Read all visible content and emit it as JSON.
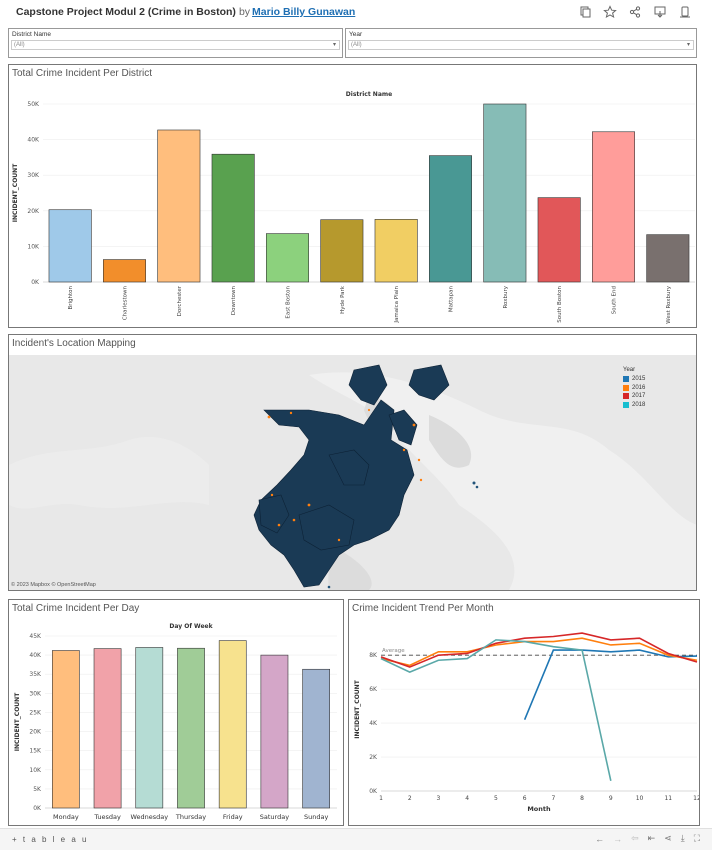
{
  "header": {
    "title": "Capstone Project Modul 2 (Crime in Boston)",
    "by": "by",
    "author": "Mario Billy Gunawan",
    "icons": [
      "copy-icon",
      "star-icon",
      "share-icon",
      "download-icon",
      "device-icon"
    ]
  },
  "filters": {
    "district": {
      "label": "District Name",
      "value": "(All)"
    },
    "year": {
      "label": "Year",
      "value": "(All)"
    }
  },
  "district_panel": {
    "title": "Total Crime Incident Per District"
  },
  "map_panel": {
    "title": "Incident's Location Mapping",
    "legend_title": "Year",
    "legend": [
      {
        "label": "2015",
        "color": "#1f77b4"
      },
      {
        "label": "2016",
        "color": "#ff7f0e"
      },
      {
        "label": "2017",
        "color": "#d62728"
      },
      {
        "label": "2018",
        "color": "#17becf"
      }
    ],
    "attribution": "© 2023 Mapbox © OpenStreetMap"
  },
  "day_panel": {
    "title": "Total Crime Incident Per Day"
  },
  "month_panel": {
    "title": "Crime Incident Trend Per Month"
  },
  "footer": {
    "logo": "+ t a b l e a u",
    "icons": [
      "undo-icon",
      "redo-icon",
      "revert-icon",
      "reset-icon",
      "share-icon",
      "download-icon",
      "fullscreen-icon"
    ]
  },
  "chart_data": [
    {
      "type": "bar",
      "title": "District Name",
      "ylabel": "INCIDENT_COUNT",
      "xlabel": "",
      "ylim": [
        0,
        50000
      ],
      "yticks": [
        "0K",
        "10K",
        "20K",
        "30K",
        "40K",
        "50K"
      ],
      "categories": [
        "Brighton",
        "Charlestown",
        "Dorchester",
        "Downtown",
        "East Boston",
        "Hyde Park",
        "Jamaica Plain",
        "Mattapan",
        "Roxbury",
        "South Boston",
        "South End",
        "West Roxbury"
      ],
      "values": [
        20300,
        6300,
        42700,
        35900,
        13600,
        17500,
        17600,
        35500,
        50000,
        23700,
        42200,
        13300
      ],
      "colors": [
        "#9fc9e9",
        "#f28e2b",
        "#ffbe7d",
        "#59a14f",
        "#8cd17d",
        "#b6992d",
        "#f1ce63",
        "#499894",
        "#86bcb6",
        "#e15759",
        "#ff9d9a",
        "#79706e"
      ]
    },
    {
      "type": "bar",
      "title": "Day Of Week",
      "ylabel": "INCIDENT_COUNT",
      "xlabel": "",
      "ylim": [
        0,
        45000
      ],
      "yticks": [
        "0K",
        "5K",
        "10K",
        "15K",
        "20K",
        "25K",
        "30K",
        "35K",
        "40K",
        "45K"
      ],
      "categories": [
        "Monday",
        "Tuesday",
        "Wednesday",
        "Thursday",
        "Friday",
        "Saturday",
        "Sunday"
      ],
      "values": [
        41200,
        41700,
        42000,
        41800,
        43800,
        40000,
        36300
      ],
      "colors": [
        "#ffbe7d",
        "#f1a2a9",
        "#b5dcd4",
        "#a0cc97",
        "#f7e28e",
        "#d4a6c8",
        "#a0b4d0"
      ]
    },
    {
      "type": "line",
      "title": "",
      "xlabel": "Month",
      "ylabel": "INCIDENT_COUNT",
      "xlim": [
        1,
        12
      ],
      "ylim": [
        0,
        8000
      ],
      "yticks": [
        "0K",
        "2K",
        "4K",
        "6K",
        "8K"
      ],
      "x": [
        1,
        2,
        3,
        4,
        5,
        6,
        7,
        8,
        9,
        10,
        11,
        12
      ],
      "reference_line": {
        "label": "Average",
        "value": 8000
      },
      "series": [
        {
          "color": "#1f77b4",
          "x": [
            6,
            7,
            8,
            9,
            10,
            11,
            12
          ],
          "values": [
            4200,
            8300,
            8300,
            8200,
            8300,
            7900,
            7950
          ]
        },
        {
          "color": "#ff7f0e",
          "x": [
            1,
            2,
            3,
            4,
            5,
            6,
            7,
            8,
            9,
            10,
            11,
            12
          ],
          "values": [
            7800,
            7400,
            8200,
            8200,
            8600,
            8800,
            8800,
            9000,
            8600,
            8700,
            8000,
            7700
          ]
        },
        {
          "color": "#d62728",
          "x": [
            1,
            2,
            3,
            4,
            5,
            6,
            7,
            8,
            9,
            10,
            11,
            12
          ],
          "values": [
            7900,
            7300,
            8000,
            8100,
            8700,
            9000,
            9100,
            9300,
            8900,
            9000,
            8100,
            7600
          ]
        },
        {
          "color": "#5aa8a8",
          "x": [
            1,
            2,
            3,
            4,
            5,
            6,
            7,
            8,
            9
          ],
          "values": [
            7800,
            7000,
            7700,
            7800,
            8900,
            8800,
            8500,
            8300,
            600
          ]
        }
      ]
    }
  ]
}
